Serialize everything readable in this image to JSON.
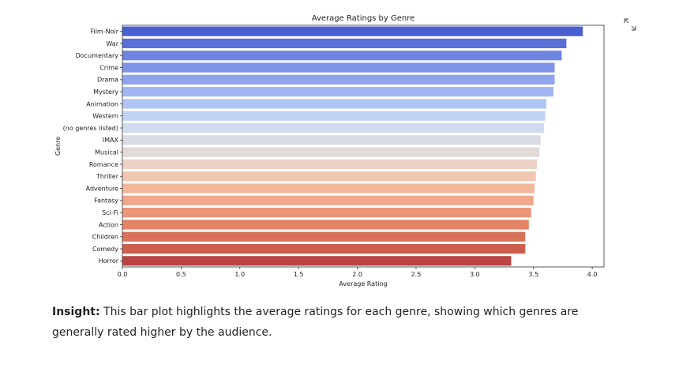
{
  "icons": {
    "expand": "expand-icon"
  },
  "chart_data": {
    "type": "bar",
    "orientation": "horizontal",
    "title": "Average Ratings by Genre",
    "xlabel": "Average Rating",
    "ylabel": "Genre",
    "xlim": [
      0,
      4.1
    ],
    "xticks": [
      "0.0",
      "0.5",
      "1.0",
      "1.5",
      "2.0",
      "2.5",
      "3.0",
      "3.5",
      "4.0"
    ],
    "grid": false,
    "palette": "coolwarm",
    "categories": [
      "Film-Noir",
      "War",
      "Documentary",
      "Crime",
      "Drama",
      "Mystery",
      "Animation",
      "Western",
      "(no genres listed)",
      "IMAX",
      "Musical",
      "Romance",
      "Thriller",
      "Adventure",
      "Fantasy",
      "Sci-Fi",
      "Action",
      "Children",
      "Comedy",
      "Horror"
    ],
    "values": [
      3.92,
      3.78,
      3.74,
      3.68,
      3.68,
      3.67,
      3.61,
      3.6,
      3.59,
      3.56,
      3.55,
      3.53,
      3.52,
      3.51,
      3.5,
      3.48,
      3.46,
      3.43,
      3.43,
      3.31
    ],
    "colors": [
      "#4a5fd0",
      "#5a70d8",
      "#6d84e0",
      "#7d93e8",
      "#8ea4ef",
      "#9fb5f4",
      "#b0c5f6",
      "#c0d2f5",
      "#d0dbf0",
      "#d9dce4",
      "#e2dad6",
      "#ebd2c4",
      "#f0c6b2",
      "#f2b79d",
      "#f0a78a",
      "#eb9677",
      "#e38466",
      "#d87258",
      "#cc5f4c",
      "#bb4444"
    ]
  },
  "insight": {
    "label": "Insight:",
    "text": " This bar plot highlights the average ratings for each genre, showing which genres are generally rated higher by the audience."
  }
}
